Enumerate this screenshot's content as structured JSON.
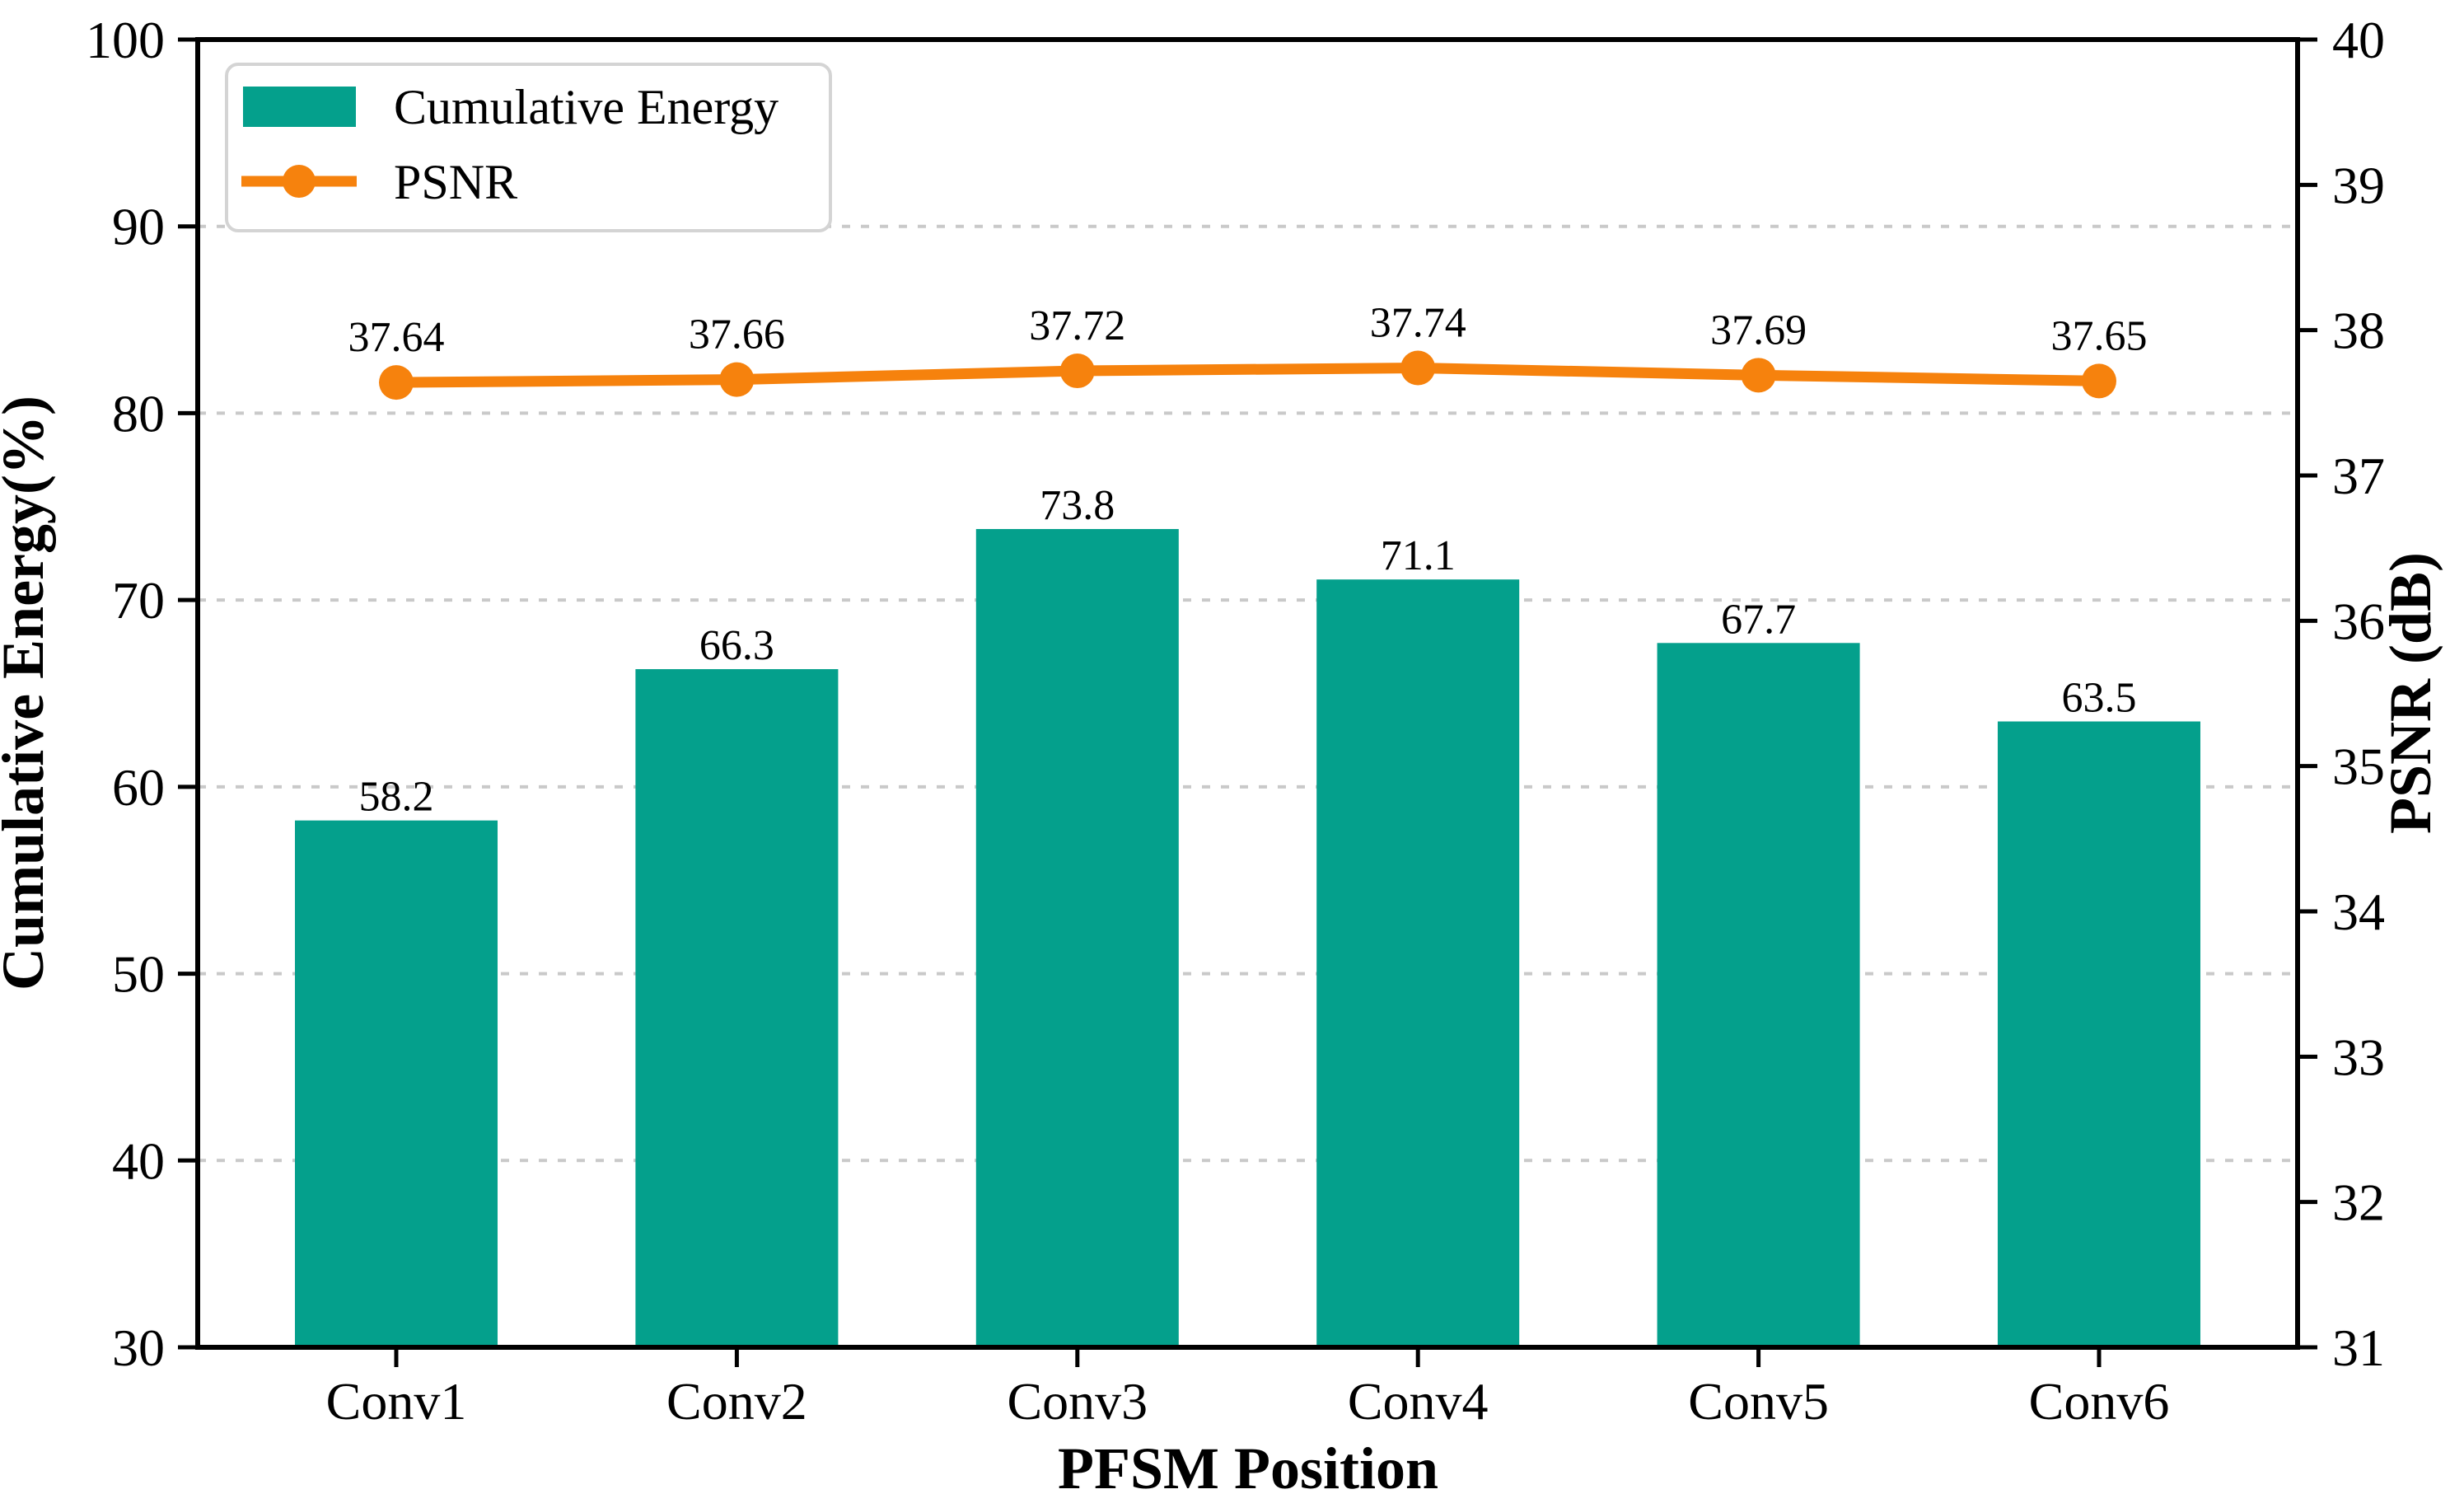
{
  "colors": {
    "teal": "#04a08c",
    "orange": "#f6820d",
    "grid": "#c9c9c9",
    "axis": "#000000",
    "legend_border": "#d4d4d4",
    "background": "#ffffff"
  },
  "legend": {
    "position": "upper left",
    "items": [
      {
        "label": "Cumulative Energy",
        "swatch": "bar-swatch"
      },
      {
        "label": "PSNR",
        "swatch": "line-marker-swatch"
      }
    ]
  },
  "chart_data": {
    "type": "bar",
    "subtype": "bar+line dual axis",
    "categories": [
      "Conv1",
      "Conv2",
      "Conv3",
      "Conv4",
      "Conv5",
      "Conv6"
    ],
    "series": [
      {
        "name": "Cumulative Energy",
        "type": "bar",
        "axis": "left",
        "values": [
          58.2,
          66.3,
          73.8,
          71.1,
          67.7,
          63.5
        ],
        "value_label_decimals": 1,
        "color": "#04a08c"
      },
      {
        "name": "PSNR",
        "type": "line",
        "axis": "right",
        "values": [
          37.64,
          37.66,
          37.72,
          37.74,
          37.69,
          37.65
        ],
        "value_label_decimals": 2,
        "color": "#f6820d"
      }
    ],
    "title": "",
    "xlabel": "PFSM Position",
    "ylabel_left": "Cumulative Energy(%)",
    "ylabel_right": "PSNR (dB)",
    "ylim_left": [
      30,
      100
    ],
    "ylim_right": [
      31,
      40
    ],
    "yticks_left": [
      30,
      40,
      50,
      60,
      70,
      80,
      90,
      100
    ],
    "yticks_right": [
      31,
      32,
      33,
      34,
      35,
      36,
      37,
      38,
      39,
      40
    ],
    "grid": "horizontal dashed at left-axis ticks",
    "legend_position": "upper left"
  }
}
